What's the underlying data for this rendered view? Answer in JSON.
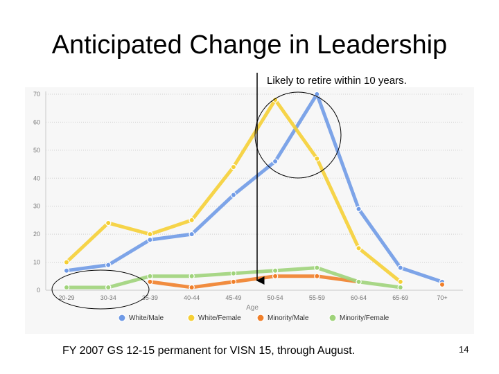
{
  "slide": {
    "title": "Anticipated Change in Leadership",
    "annotation": "Likely to retire within 10 years.",
    "footer": "FY 2007 GS 12-15 permanent for VISN 15, through August.",
    "page_number": "14"
  },
  "chart_data": {
    "type": "line",
    "title": "",
    "xlabel": "Age",
    "ylabel": "",
    "ylim": [
      0,
      70
    ],
    "yticks": [
      0,
      10,
      20,
      30,
      40,
      50,
      60,
      70
    ],
    "categories": [
      "20-29",
      "30-34",
      "35-39",
      "40-44",
      "45-49",
      "50-54",
      "55-59",
      "60-64",
      "65-69",
      "70+"
    ],
    "series": [
      {
        "name": "White/Male",
        "color": "#6f9ae6",
        "values": [
          7,
          9,
          18,
          20,
          34,
          46,
          70,
          29,
          8,
          3
        ]
      },
      {
        "name": "White/Female",
        "color": "#f5cf35",
        "values": [
          10,
          24,
          20,
          25,
          44,
          68,
          47,
          15,
          3,
          null
        ]
      },
      {
        "name": "Minority/Male",
        "color": "#f07f2a",
        "values": [
          null,
          null,
          3,
          1,
          3,
          5,
          5,
          3,
          null,
          2
        ]
      },
      {
        "name": "Minority/Female",
        "color": "#9fd37a",
        "values": [
          1,
          1,
          5,
          5,
          6,
          7,
          8,
          3,
          1,
          null
        ]
      }
    ],
    "grid": true,
    "legend": "bottom"
  }
}
